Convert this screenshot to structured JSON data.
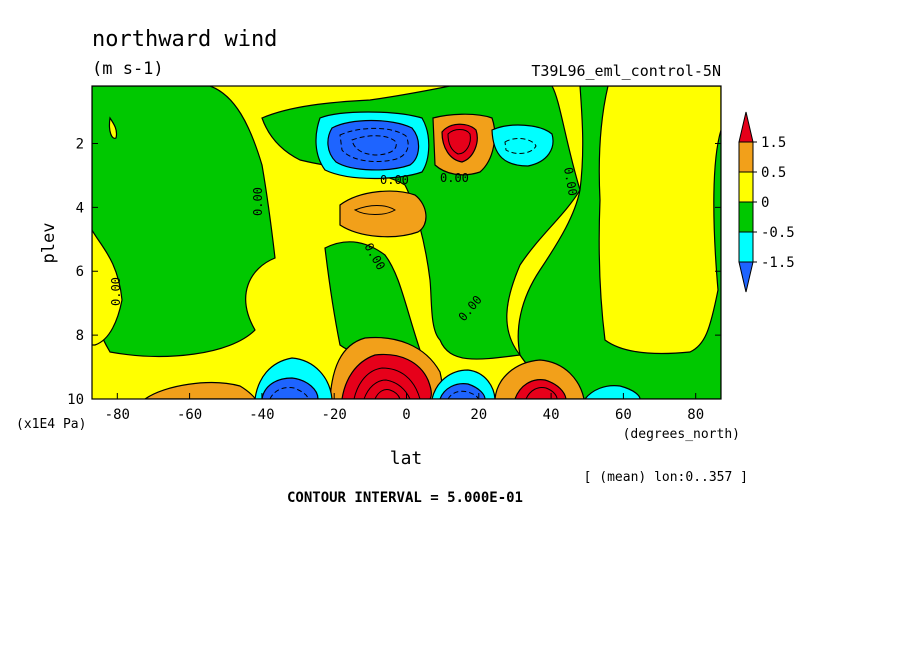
{
  "chart_data": {
    "type": "heatmap",
    "title": "northward wind",
    "subtitle": "(m s-1)",
    "dataset_label": "T39L96_eml_control-5N",
    "xlabel": "lat",
    "x_units": "(degrees_north)",
    "ylabel": "plev",
    "y_units": "(x1E4 Pa)",
    "xlim": [
      -87,
      87
    ],
    "ylim": [
      10,
      0.2
    ],
    "x_ticks": [
      -80,
      -60,
      -40,
      -20,
      0,
      20,
      40,
      60,
      80
    ],
    "x_tick_labels": [
      "-80",
      "-60",
      "-40",
      "-20",
      "0",
      "20",
      "40",
      "60",
      "80"
    ],
    "y_ticks": [
      2,
      4,
      6,
      8,
      10
    ],
    "y_tick_labels": [
      "2",
      "4",
      "6",
      "8",
      "10"
    ],
    "averaging_note": "[ (mean) lon:0..357 ]",
    "contour_interval_text": "CONTOUR INTERVAL = 5.000E-01",
    "contour_label": "0.00",
    "grid": false,
    "colorbar": {
      "placement": "right",
      "labels": [
        "1.5",
        "0.5",
        "0",
        "-0.5",
        "-1.5"
      ],
      "levels": [
        1.5,
        1,
        0.5,
        0,
        -0.5,
        -1,
        -1.5
      ],
      "colors": {
        "gt_1": "#e6001a",
        "0.5_to_1": "#f2a01a",
        "0_to_0.5": "#ffff00",
        "-0.5_to_0": "#00c800",
        "-1_to_-0.5": "#00ffff",
        "lt_-1": "#1e64ff"
      }
    },
    "features": [
      {
        "lat": -9,
        "plev": 2.0,
        "value": -1.8,
        "sign": "negative",
        "region": "upper"
      },
      {
        "lat": 14,
        "plev": 1.8,
        "value": 1.8,
        "sign": "positive",
        "region": "upper"
      },
      {
        "lat": 32,
        "plev": 2.0,
        "value": -0.8,
        "sign": "negative",
        "region": "upper"
      },
      {
        "lat": -8,
        "plev": 4.0,
        "value": 0.8,
        "sign": "positive",
        "region": "middle"
      },
      {
        "lat": -57,
        "plev": 10.0,
        "value": 0.7,
        "sign": "positive",
        "region": "surface"
      },
      {
        "lat": -33,
        "plev": 9.8,
        "value": -1.3,
        "sign": "negative",
        "region": "surface"
      },
      {
        "lat": -6,
        "plev": 9.8,
        "value": 2.5,
        "sign": "positive",
        "region": "surface"
      },
      {
        "lat": 18,
        "plev": 9.9,
        "value": -1.1,
        "sign": "negative",
        "region": "surface"
      },
      {
        "lat": 34,
        "plev": 9.8,
        "value": 1.3,
        "sign": "positive",
        "region": "surface"
      },
      {
        "lat": 58,
        "plev": 10.0,
        "value": -0.6,
        "sign": "negative",
        "region": "surface"
      }
    ]
  }
}
